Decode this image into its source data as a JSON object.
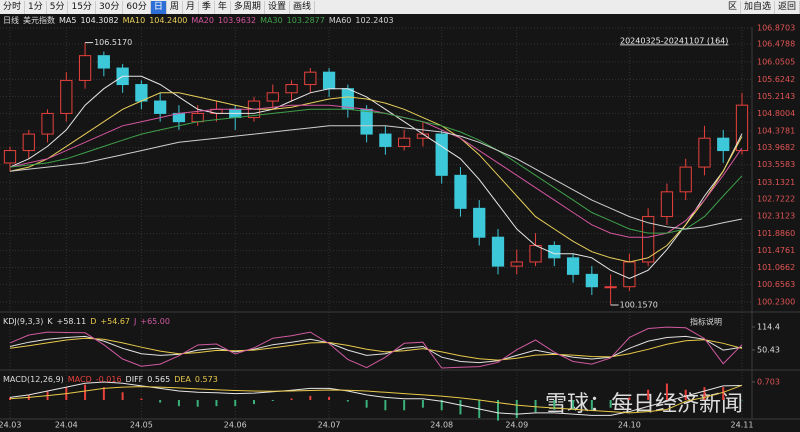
{
  "toolbar": {
    "periods": [
      "分时",
      "1分",
      "5分",
      "15分",
      "30分",
      "60分",
      "日",
      "周",
      "月",
      "季",
      "年",
      "多周期",
      "设置",
      "画线"
    ],
    "active_index": 6,
    "actions": [
      "区",
      "加自选",
      "返回"
    ]
  },
  "chart_data": [
    {
      "type": "candlestick",
      "period": "日线",
      "title": "美元指数",
      "range_label": "20240325-20241107 (164)",
      "watermark": "雪球：每日经济新闻",
      "up_color": "#e8413c",
      "down_color": "#3cc8d8",
      "grid": true,
      "open": [
        103.6,
        103.9,
        104.3,
        104.8,
        105.6,
        106.2,
        105.9,
        105.5,
        105.1,
        104.8,
        104.6,
        104.8,
        104.9,
        104.7,
        105.1,
        105.3,
        105.5,
        105.8,
        105.4,
        104.9,
        104.3,
        104.0,
        104.2,
        104.3,
        103.3,
        102.5,
        101.8,
        101.1,
        101.2,
        101.6,
        101.3,
        100.9,
        100.6,
        100.6,
        101.2,
        102.3,
        102.9,
        103.5,
        104.2,
        103.9
      ],
      "high": [
        104.0,
        104.4,
        104.9,
        105.8,
        106.517,
        106.3,
        106.0,
        105.6,
        105.3,
        105.0,
        105.0,
        105.1,
        105.0,
        105.2,
        105.5,
        105.6,
        105.9,
        105.9,
        105.5,
        105.0,
        104.5,
        104.4,
        104.6,
        104.4,
        103.5,
        102.7,
        102.0,
        101.5,
        101.9,
        101.7,
        101.4,
        101.1,
        100.9,
        101.4,
        102.5,
        103.1,
        103.7,
        104.5,
        104.4,
        105.3
      ],
      "low": [
        103.4,
        103.7,
        104.1,
        104.6,
        105.4,
        105.7,
        105.3,
        104.9,
        104.6,
        104.4,
        104.5,
        104.6,
        104.4,
        104.6,
        104.9,
        105.1,
        105.3,
        105.2,
        104.7,
        104.1,
        103.8,
        103.9,
        104.0,
        103.1,
        102.3,
        101.6,
        100.9,
        100.9,
        101.1,
        101.1,
        100.7,
        100.4,
        100.157,
        100.5,
        101.1,
        102.1,
        102.7,
        103.3,
        103.6,
        103.8
      ],
      "close": [
        103.9,
        104.3,
        104.8,
        105.6,
        106.2,
        105.9,
        105.5,
        105.1,
        104.8,
        104.6,
        104.8,
        104.9,
        104.7,
        105.1,
        105.3,
        105.5,
        105.8,
        105.4,
        104.9,
        104.3,
        104.0,
        104.2,
        104.3,
        103.3,
        102.5,
        101.8,
        101.1,
        101.2,
        101.6,
        101.3,
        100.9,
        100.6,
        100.6,
        101.2,
        102.3,
        102.9,
        103.5,
        104.2,
        103.9,
        105.0
      ],
      "series": [
        {
          "name": "MA5",
          "color": "#e6e6e6",
          "value_label": "104.3082",
          "values": [
            103.5,
            103.7,
            104.0,
            104.4,
            105.0,
            105.4,
            105.7,
            105.7,
            105.5,
            105.2,
            104.9,
            104.8,
            104.8,
            104.8,
            104.9,
            105.1,
            105.3,
            105.4,
            105.4,
            105.2,
            104.9,
            104.6,
            104.3,
            104.0,
            103.7,
            103.2,
            102.6,
            102.0,
            101.6,
            101.4,
            101.4,
            101.3,
            101.0,
            100.8,
            101.0,
            101.5,
            102.1,
            102.8,
            103.4,
            104.3082
          ]
        },
        {
          "name": "MA10",
          "color": "#e8cf5a",
          "value_label": "104.2400",
          "values": [
            103.4,
            103.5,
            103.7,
            104.0,
            104.3,
            104.6,
            104.9,
            105.1,
            105.3,
            105.3,
            105.2,
            105.1,
            105.0,
            104.9,
            104.9,
            104.95,
            105.05,
            105.15,
            105.2,
            105.15,
            105.05,
            104.9,
            104.7,
            104.5,
            104.2,
            103.8,
            103.3,
            102.8,
            102.3,
            102.0,
            101.7,
            101.45,
            101.3,
            101.2,
            101.3,
            101.6,
            102.1,
            102.7,
            103.4,
            104.24
          ]
        },
        {
          "name": "MA20",
          "color": "#d4559e",
          "value_label": "103.9632",
          "values": [
            103.5,
            103.6,
            103.7,
            103.9,
            104.1,
            104.3,
            104.5,
            104.6,
            104.7,
            104.8,
            104.85,
            104.9,
            104.9,
            104.9,
            104.95,
            105.0,
            105.0,
            105.0,
            104.95,
            104.9,
            104.8,
            104.7,
            104.6,
            104.4,
            104.2,
            103.9,
            103.6,
            103.3,
            103.0,
            102.7,
            102.4,
            102.1,
            101.9,
            101.8,
            101.8,
            101.9,
            102.2,
            102.7,
            103.3,
            103.9632
          ]
        },
        {
          "name": "MA30",
          "color": "#3fa04a",
          "value_label": "103.2877",
          "values": [
            103.5,
            103.55,
            103.6,
            103.7,
            103.85,
            104.0,
            104.15,
            104.3,
            104.4,
            104.5,
            104.6,
            104.65,
            104.7,
            104.75,
            104.8,
            104.85,
            104.9,
            104.9,
            104.9,
            104.85,
            104.8,
            104.7,
            104.6,
            104.5,
            104.35,
            104.15,
            103.9,
            103.6,
            103.3,
            103.0,
            102.7,
            102.4,
            102.2,
            102.0,
            101.9,
            101.9,
            102.0,
            102.3,
            102.8,
            103.2877
          ]
        },
        {
          "name": "MA60",
          "color": "#cfcfcf",
          "value_label": "102.2403",
          "values": [
            103.4,
            103.45,
            103.5,
            103.55,
            103.6,
            103.7,
            103.8,
            103.9,
            104.0,
            104.1,
            104.15,
            104.2,
            104.25,
            104.3,
            104.35,
            104.4,
            104.45,
            104.5,
            104.5,
            104.5,
            104.5,
            104.45,
            104.4,
            104.35,
            104.25,
            104.1,
            103.9,
            103.7,
            103.45,
            103.2,
            102.95,
            102.7,
            102.5,
            102.3,
            102.15,
            102.05,
            102.0,
            102.05,
            102.15,
            102.2403
          ]
        }
      ],
      "annotations": [
        {
          "candle": 4,
          "value": 106.517,
          "label": "106.5170"
        },
        {
          "candle": 32,
          "value": 100.157,
          "label": "100.1570"
        }
      ],
      "ylim": [
        100.23,
        106.8703
      ],
      "yticks": [
        {
          "value": 100.23,
          "label": "100.2300"
        },
        {
          "value": 100.6563,
          "label": "100.6563"
        },
        {
          "value": 101.0662,
          "label": "101.0662"
        },
        {
          "value": 101.4761,
          "label": "101.4761"
        },
        {
          "value": 101.886,
          "label": "101.8860"
        },
        {
          "value": 102.3123,
          "label": "102.3123"
        },
        {
          "value": 102.7222,
          "label": "102.7222"
        },
        {
          "value": 103.1321,
          "label": "103.1321"
        },
        {
          "value": 103.5583,
          "label": "103.5583"
        },
        {
          "value": 103.9682,
          "label": "103.9682"
        },
        {
          "value": 104.3781,
          "label": "104.3781"
        },
        {
          "value": 104.8004,
          "label": "104.8004"
        },
        {
          "value": 105.2143,
          "label": "105.2143"
        },
        {
          "value": 105.6242,
          "label": "105.6242"
        },
        {
          "value": 106.0505,
          "label": "106.0505"
        },
        {
          "value": 106.4788,
          "label": "106.4788"
        },
        {
          "value": 106.8703,
          "label": "106.8703"
        }
      ],
      "xticks": [
        {
          "value": 0,
          "label": "24.03"
        },
        {
          "value": 3,
          "label": "24.04"
        },
        {
          "value": 7,
          "label": "24.05"
        },
        {
          "value": 12,
          "label": "24.06"
        },
        {
          "value": 17,
          "label": "24.07"
        },
        {
          "value": 23,
          "label": "24.08"
        },
        {
          "value": 27,
          "label": "24.09"
        },
        {
          "value": 33,
          "label": "24.10"
        },
        {
          "value": 39,
          "label": "24.11"
        }
      ]
    },
    {
      "type": "line",
      "title": "KDJ(9,3,3)",
      "link_label": "指标说明",
      "series": [
        {
          "name": "K",
          "color": "#e0e0e0",
          "value_label": "+58.11",
          "values": [
            60,
            72,
            80,
            85,
            88,
            75,
            55,
            40,
            35,
            38,
            50,
            55,
            45,
            52,
            65,
            72,
            80,
            70,
            50,
            35,
            40,
            55,
            60,
            30,
            18,
            15,
            20,
            35,
            50,
            40,
            30,
            25,
            30,
            55,
            75,
            85,
            88,
            80,
            50,
            58.11
          ]
        },
        {
          "name": "D",
          "color": "#e8c94a",
          "value_label": "+54.67",
          "values": [
            55,
            62,
            70,
            78,
            83,
            80,
            70,
            58,
            47,
            40,
            43,
            49,
            48,
            50,
            56,
            63,
            70,
            71,
            63,
            52,
            45,
            48,
            54,
            45,
            34,
            26,
            22,
            27,
            36,
            38,
            36,
            32,
            31,
            40,
            52,
            66,
            76,
            79,
            69,
            54.67
          ]
        },
        {
          "name": "J",
          "color": "#d05aa0",
          "value_label": "+65.00",
          "values": [
            70,
            92,
            100,
            99,
            98,
            65,
            25,
            5,
            11,
            34,
            64,
            67,
            39,
            56,
            83,
            90,
            100,
            68,
            24,
            1,
            30,
            69,
            72,
            0,
            2,
            4,
            16,
            51,
            78,
            44,
            18,
            11,
            28,
            85,
            110,
            114,
            112,
            82,
            12,
            65
          ]
        }
      ],
      "ylim": [
        0,
        139.4
      ],
      "yticks": [
        114.4,
        50.43
      ]
    },
    {
      "type": "macd",
      "title": "MACD(12,26,9)",
      "up_color": "#e8413c",
      "down_color": "#3ab07a",
      "histogram": {
        "name": "MACD",
        "values": [
          0.1,
          0.2,
          0.36,
          0.5,
          0.6,
          0.5,
          0.3,
          0.06,
          -0.1,
          -0.24,
          -0.26,
          -0.24,
          -0.24,
          -0.16,
          -0.04,
          0.06,
          0.16,
          0.12,
          -0.06,
          -0.3,
          -0.4,
          -0.4,
          -0.3,
          -0.4,
          -0.56,
          -0.7,
          -0.8,
          -0.7,
          -0.48,
          -0.38,
          -0.38,
          -0.38,
          -0.3,
          0.1,
          0.4,
          0.64,
          0.4,
          0.5,
          0.5,
          -0.016
        ]
      },
      "series": [
        {
          "name": "DIFF",
          "color": "#e6e6e6",
          "value_label": "0.565",
          "values": [
            0.1,
            0.2,
            0.35,
            0.5,
            0.65,
            0.7,
            0.65,
            0.55,
            0.45,
            0.35,
            0.3,
            0.28,
            0.25,
            0.27,
            0.32,
            0.38,
            0.45,
            0.45,
            0.35,
            0.2,
            0.1,
            0.05,
            0.05,
            -0.05,
            -0.2,
            -0.35,
            -0.5,
            -0.55,
            -0.5,
            -0.5,
            -0.55,
            -0.6,
            -0.6,
            -0.45,
            -0.25,
            -0.05,
            0.15,
            0.35,
            0.55,
            0.565
          ]
        },
        {
          "name": "DEA",
          "color": "#e8c94a",
          "value_label": "0.573",
          "values": [
            0.05,
            0.1,
            0.17,
            0.25,
            0.35,
            0.45,
            0.5,
            0.52,
            0.5,
            0.47,
            0.43,
            0.4,
            0.37,
            0.35,
            0.34,
            0.35,
            0.37,
            0.39,
            0.38,
            0.35,
            0.3,
            0.25,
            0.2,
            0.15,
            0.08,
            0,
            -0.1,
            -0.2,
            -0.26,
            -0.31,
            -0.36,
            -0.41,
            -0.45,
            -0.5,
            -0.45,
            -0.37,
            -0.05,
            0.1,
            0.3,
            0.573
          ]
        }
      ],
      "ylim": [
        -0.7,
        1.05
      ],
      "yticks": [
        0.703
      ]
    }
  ]
}
